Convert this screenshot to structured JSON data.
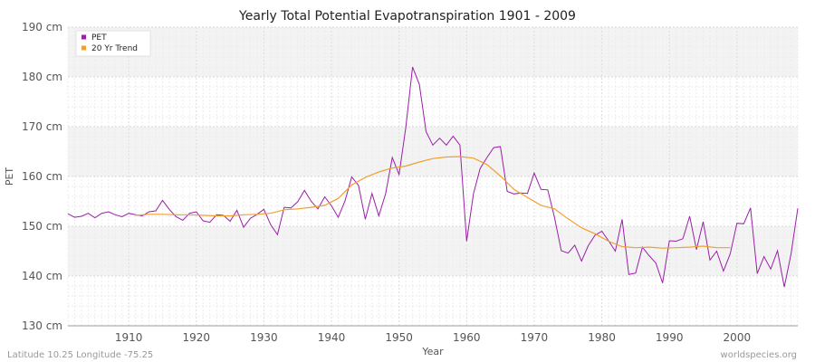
{
  "footer": {
    "left": "Latitude 10.25 Longitude -75.25",
    "right": "worldspecies.org"
  },
  "chart_data": {
    "type": "line",
    "title": "Yearly Total Potential Evapotranspiration 1901 - 2009",
    "xlabel": "Year",
    "ylabel": "PET",
    "xlim": [
      1901,
      2009
    ],
    "ylim": [
      130,
      190
    ],
    "x_ticks": [
      "1910",
      "1920",
      "1930",
      "1940",
      "1950",
      "1960",
      "1970",
      "1980",
      "1990",
      "2000"
    ],
    "y_ticks": [
      "130 cm",
      "140 cm",
      "150 cm",
      "160 cm",
      "170 cm",
      "180 cm",
      "190 cm"
    ],
    "grid": true,
    "legend_position": "top-left",
    "colors": {
      "PET": "#9b1fa8",
      "trend": "#f0a030",
      "band": "#eeeeee"
    },
    "series": [
      {
        "name": "PET",
        "x": [
          1901,
          1902,
          1903,
          1904,
          1905,
          1906,
          1907,
          1908,
          1909,
          1910,
          1911,
          1912,
          1913,
          1914,
          1915,
          1916,
          1917,
          1918,
          1919,
          1920,
          1921,
          1922,
          1923,
          1924,
          1925,
          1926,
          1927,
          1928,
          1929,
          1930,
          1931,
          1932,
          1933,
          1934,
          1935,
          1936,
          1937,
          1938,
          1939,
          1940,
          1941,
          1942,
          1943,
          1944,
          1945,
          1946,
          1947,
          1948,
          1949,
          1950,
          1951,
          1952,
          1953,
          1954,
          1955,
          1956,
          1957,
          1958,
          1959,
          1960,
          1961,
          1962,
          1963,
          1964,
          1965,
          1966,
          1967,
          1968,
          1969,
          1970,
          1971,
          1972,
          1973,
          1974,
          1975,
          1976,
          1977,
          1978,
          1979,
          1980,
          1981,
          1982,
          1983,
          1984,
          1985,
          1986,
          1987,
          1988,
          1989,
          1990,
          1991,
          1992,
          1993,
          1994,
          1995,
          1996,
          1997,
          1998,
          1999,
          2000,
          2001,
          2002,
          2003,
          2004,
          2005,
          2006,
          2007,
          2008,
          2009
        ],
        "values": [
          152.5,
          151.8,
          152.0,
          152.6,
          151.7,
          152.6,
          152.9,
          152.3,
          151.9,
          152.6,
          152.3,
          152.1,
          152.9,
          153.1,
          155.2,
          153.4,
          151.9,
          151.2,
          152.6,
          152.9,
          151.1,
          150.8,
          152.3,
          152.2,
          151.0,
          153.2,
          149.8,
          151.6,
          152.4,
          153.4,
          150.3,
          148.3,
          153.8,
          153.7,
          154.9,
          157.2,
          155.0,
          153.5,
          155.9,
          154.1,
          151.8,
          155.1,
          159.9,
          158.2,
          151.4,
          156.6,
          152.1,
          156.5,
          163.8,
          160.4,
          169.8,
          182.0,
          178.5,
          169.0,
          166.3,
          167.7,
          166.3,
          168.1,
          166.3,
          147.0,
          156.5,
          161.6,
          163.8,
          165.8,
          166.0,
          157.0,
          156.5,
          156.7,
          156.6,
          160.7,
          157.4,
          157.3,
          151.8,
          145.1,
          144.6,
          146.2,
          143.0,
          146.1,
          148.2,
          149.0,
          147.1,
          145.0,
          151.4,
          140.3,
          140.6,
          145.8,
          144.1,
          142.6,
          138.6,
          147.1,
          147.0,
          147.5,
          152.0,
          145.3,
          150.9,
          143.2,
          145.0,
          141.0,
          144.5,
          150.6,
          150.5,
          153.7,
          140.5,
          143.9,
          141.4,
          145.1,
          137.8,
          144.4,
          153.6
        ]
      },
      {
        "name": "20 Yr Trend",
        "x": [
          1911,
          1913,
          1915,
          1917,
          1919,
          1921,
          1923,
          1925,
          1927,
          1929,
          1931,
          1933,
          1935,
          1937,
          1939,
          1941,
          1943,
          1945,
          1947,
          1949,
          1951,
          1953,
          1955,
          1957,
          1959,
          1961,
          1963,
          1965,
          1967,
          1969,
          1971,
          1973,
          1975,
          1977,
          1979,
          1981,
          1983,
          1985,
          1987,
          1989,
          1991,
          1993,
          1995,
          1997,
          1999
        ],
        "values": [
          152.2,
          152.4,
          152.4,
          152.3,
          152.3,
          152.2,
          152.1,
          152.1,
          152.3,
          152.4,
          152.6,
          153.3,
          153.5,
          153.8,
          154.2,
          155.6,
          158.3,
          159.8,
          160.9,
          161.7,
          162.1,
          162.9,
          163.6,
          163.9,
          164.0,
          163.7,
          162.4,
          160.1,
          157.4,
          155.8,
          154.2,
          153.5,
          151.5,
          149.7,
          148.5,
          147.0,
          145.9,
          145.7,
          145.8,
          145.6,
          145.7,
          145.8,
          146.0,
          145.7,
          145.7
        ]
      }
    ]
  }
}
